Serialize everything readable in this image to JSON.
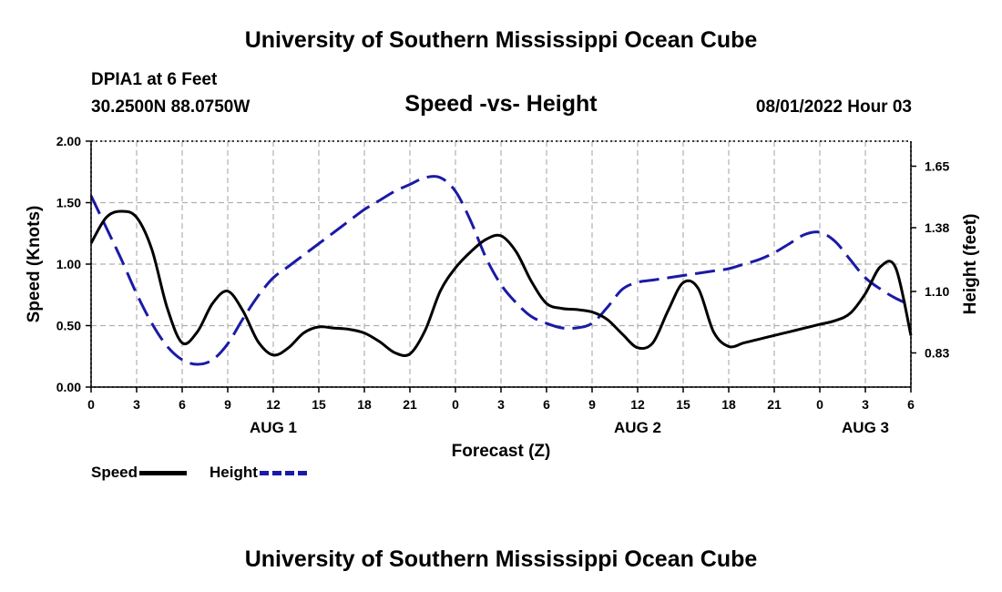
{
  "header": {
    "title": "University of Southern Mississippi Ocean Cube",
    "station": "DPIA1 at 6 Feet",
    "coords": "30.2500N  88.0750W",
    "subtitle": "Speed -vs- Height",
    "datetime": "08/01/2022 Hour 03"
  },
  "footer": {
    "title": "University of Southern Mississippi Ocean Cube"
  },
  "legend": {
    "speed_label": "Speed",
    "height_label": "Height"
  },
  "chart_data": {
    "type": "line",
    "title": "Speed -vs- Height",
    "xlabel": "Forecast (Z)",
    "ylabel": "Speed (Knots)",
    "y2label": "Height (feet)",
    "xlim": [
      0,
      54
    ],
    "ylim": [
      0,
      2.0
    ],
    "y2lim": [
      0.68,
      1.76
    ],
    "x_ticks": [
      0,
      3,
      6,
      9,
      12,
      15,
      18,
      21,
      24,
      27,
      30,
      33,
      36,
      39,
      42,
      45,
      48,
      51,
      54
    ],
    "x_tick_labels": [
      "0",
      "3",
      "6",
      "9",
      "12",
      "15",
      "18",
      "21",
      "0",
      "3",
      "6",
      "9",
      "12",
      "15",
      "18",
      "21",
      "0",
      "3",
      "6"
    ],
    "date_labels": [
      {
        "x": 12,
        "text": "AUG 1"
      },
      {
        "x": 36,
        "text": "AUG 2"
      },
      {
        "x": 51,
        "text": "AUG 3"
      }
    ],
    "y_ticks": [
      0,
      0.5,
      1.0,
      1.5,
      2.0
    ],
    "y_tick_labels": [
      "0.00",
      "0.50",
      "1.00",
      "1.50",
      "2.00"
    ],
    "y2_ticks": [
      0.83,
      1.1,
      1.38,
      1.65
    ],
    "y2_tick_labels": [
      "0.83",
      "1.10",
      "1.38",
      "1.65"
    ],
    "grid": true,
    "colors": {
      "speed": "#000000",
      "height": "#1a1aa6",
      "grid": "#b0b0b0"
    },
    "series": [
      {
        "name": "Speed",
        "axis": "left",
        "x": [
          0,
          1,
          2,
          3,
          4,
          5,
          6,
          7,
          8,
          9,
          10,
          11,
          12,
          13,
          14,
          15,
          16,
          17,
          18,
          19,
          20,
          21,
          22,
          23,
          24,
          25,
          26,
          27,
          28,
          29,
          30,
          31,
          32,
          33,
          34,
          35,
          36,
          37,
          38,
          39,
          40,
          41,
          42,
          43,
          44,
          45,
          46,
          47,
          48,
          49,
          50,
          51,
          52,
          53,
          54
        ],
        "values": [
          1.17,
          1.38,
          1.43,
          1.38,
          1.12,
          0.65,
          0.36,
          0.45,
          0.68,
          0.78,
          0.62,
          0.37,
          0.26,
          0.32,
          0.44,
          0.49,
          0.48,
          0.47,
          0.44,
          0.37,
          0.28,
          0.27,
          0.46,
          0.78,
          0.97,
          1.1,
          1.2,
          1.23,
          1.1,
          0.86,
          0.68,
          0.64,
          0.63,
          0.61,
          0.55,
          0.43,
          0.32,
          0.36,
          0.62,
          0.85,
          0.8,
          0.45,
          0.33,
          0.36,
          0.39,
          0.42,
          0.45,
          0.48,
          0.51,
          0.54,
          0.6,
          0.76,
          0.98,
          0.97,
          0.42
        ]
      },
      {
        "name": "Height",
        "axis": "right",
        "x": [
          0,
          1,
          2,
          3,
          4,
          5,
          6,
          7,
          8,
          9,
          10,
          11,
          12,
          13,
          14,
          15,
          16,
          17,
          18,
          19,
          20,
          21,
          22,
          23,
          24,
          25,
          26,
          27,
          28,
          29,
          30,
          31,
          32,
          33,
          34,
          35,
          36,
          37,
          38,
          39,
          40,
          41,
          42,
          43,
          44,
          45,
          46,
          47,
          48,
          49,
          50,
          51,
          52,
          53,
          54
        ],
        "values": [
          1.52,
          1.38,
          1.24,
          1.09,
          0.96,
          0.86,
          0.8,
          0.78,
          0.8,
          0.87,
          0.98,
          1.08,
          1.16,
          1.21,
          1.26,
          1.31,
          1.36,
          1.41,
          1.46,
          1.5,
          1.54,
          1.57,
          1.6,
          1.6,
          1.54,
          1.41,
          1.25,
          1.13,
          1.05,
          0.99,
          0.96,
          0.94,
          0.94,
          0.96,
          1.03,
          1.11,
          1.14,
          1.15,
          1.16,
          1.17,
          1.18,
          1.19,
          1.2,
          1.22,
          1.24,
          1.27,
          1.31,
          1.35,
          1.36,
          1.32,
          1.24,
          1.16,
          1.11,
          1.07,
          1.04
        ]
      }
    ]
  }
}
